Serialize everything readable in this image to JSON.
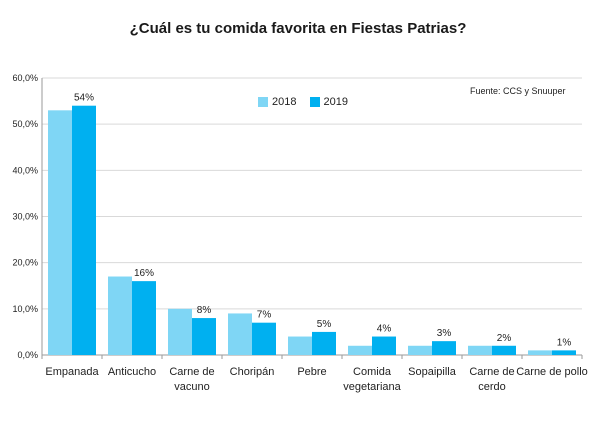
{
  "chart_data": {
    "type": "bar",
    "title": "¿Cuál es tu comida favorita en Fiestas Patrias?",
    "source_note": "Fuente: CCS y Snuuper",
    "categories": [
      [
        "Empanada"
      ],
      [
        "Anticucho"
      ],
      [
        "Carne de",
        "vacuno"
      ],
      [
        "Choripán"
      ],
      [
        "Pebre"
      ],
      [
        "Comida",
        "vegetariana"
      ],
      [
        "Sopaipilla"
      ],
      [
        "Carne de",
        "cerdo"
      ],
      [
        "Carne de pollo"
      ]
    ],
    "series": [
      {
        "name": "2018",
        "color": "#7fd6f5",
        "values": [
          53,
          17,
          10,
          9,
          4,
          2,
          2,
          2,
          1
        ]
      },
      {
        "name": "2019",
        "color": "#00b0f0",
        "values": [
          54,
          16,
          8,
          7,
          5,
          4,
          3,
          2,
          1
        ]
      }
    ],
    "data_labels": [
      "54%",
      "16%",
      "8%",
      "7%",
      "5%",
      "4%",
      "3%",
      "2%",
      "1%"
    ],
    "y_ticks": [
      "0,0%",
      "10,0%",
      "20,0%",
      "30,0%",
      "40,0%",
      "50,0%",
      "60,0%"
    ],
    "ylim": [
      0,
      60
    ],
    "grid": true,
    "legend_position": "top-center"
  }
}
